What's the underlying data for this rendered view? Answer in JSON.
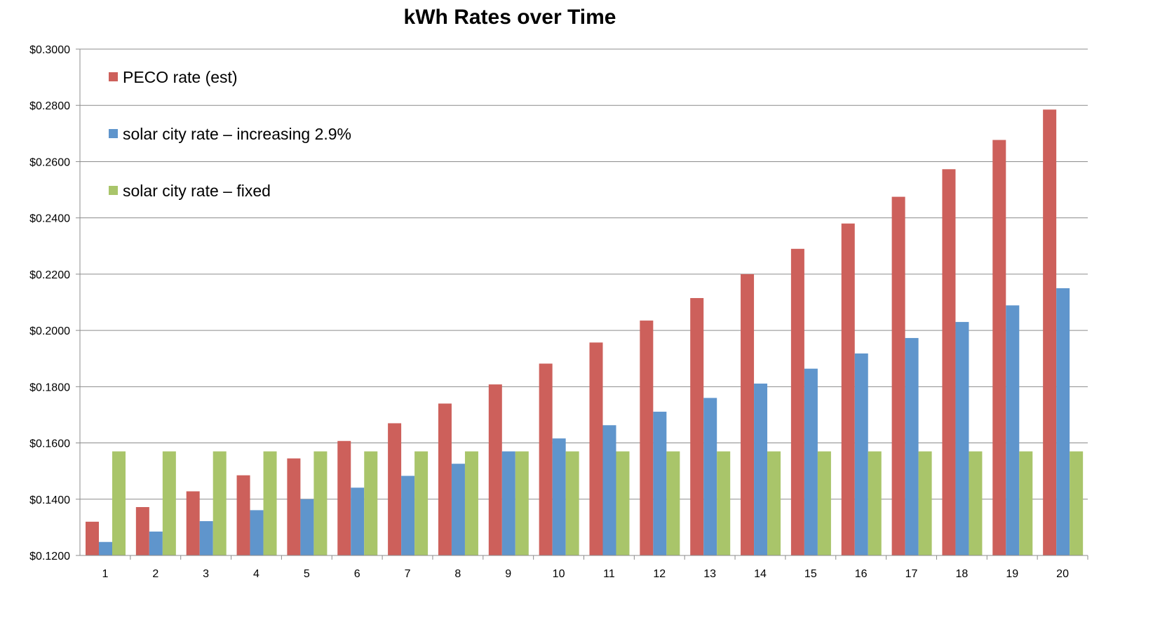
{
  "chart_data": {
    "type": "bar",
    "title": "kWh Rates over Time",
    "xlabel": "",
    "ylabel": "",
    "ylim": [
      0.12,
      0.3
    ],
    "yticks": [
      "$0.1200",
      "$0.1400",
      "$0.1600",
      "$0.1800",
      "$0.2000",
      "$0.2200",
      "$0.2400",
      "$0.2600",
      "$0.2800",
      "$0.3000"
    ],
    "categories": [
      "1",
      "2",
      "3",
      "4",
      "5",
      "6",
      "7",
      "8",
      "9",
      "10",
      "11",
      "12",
      "13",
      "14",
      "15",
      "16",
      "17",
      "18",
      "19",
      "20"
    ],
    "grid": true,
    "legend_position": "top-left",
    "series": [
      {
        "name": "PECO rate (est)",
        "color": "#cd605b",
        "values": [
          0.132,
          0.1372,
          0.1428,
          0.1485,
          0.1545,
          0.1607,
          0.167,
          0.174,
          0.1808,
          0.1882,
          0.1957,
          0.2035,
          0.2115,
          0.22,
          0.229,
          0.238,
          0.2475,
          0.2573,
          0.2677,
          0.2785
        ]
      },
      {
        "name": "solar city rate – increasing 2.9%",
        "color": "#5f95cc",
        "values": [
          0.1248,
          0.1285,
          0.1322,
          0.1361,
          0.14,
          0.1441,
          0.1483,
          0.1526,
          0.157,
          0.1616,
          0.1663,
          0.1711,
          0.176,
          0.1811,
          0.1864,
          0.1918,
          0.1973,
          0.203,
          0.2089,
          0.215
        ]
      },
      {
        "name": "solar city rate – fixed",
        "color": "#a9c56a",
        "values": [
          0.157,
          0.157,
          0.157,
          0.157,
          0.157,
          0.157,
          0.157,
          0.157,
          0.157,
          0.157,
          0.157,
          0.157,
          0.157,
          0.157,
          0.157,
          0.157,
          0.157,
          0.157,
          0.157,
          0.157
        ]
      }
    ]
  }
}
